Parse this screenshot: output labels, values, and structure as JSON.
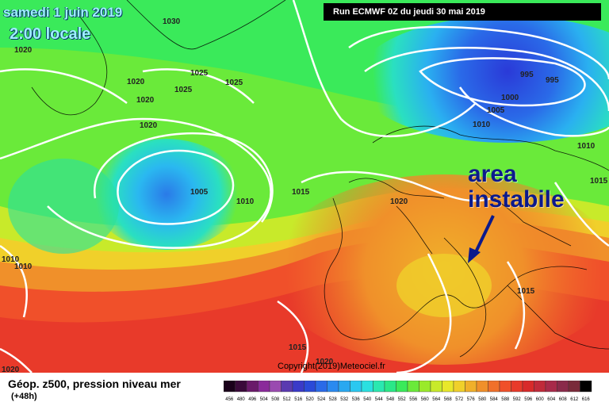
{
  "header": {
    "date": "samedi 1 juin 2019",
    "time": "2:00 locale",
    "run": "Run ECMWF 0Z du jeudi 30 mai 2019"
  },
  "annotation": {
    "line1": "area",
    "line2": "instabile"
  },
  "footer": {
    "copyright": "Copyright(2019)Meteociel.fr",
    "legend_title": "Géop. z500, pression niveau mer",
    "legend_sub": "(+48h)"
  },
  "isobar_labels": [
    "1030",
    "1020",
    "1025",
    "1025",
    "1020",
    "1025",
    "1020",
    "1020",
    "1005",
    "1010",
    "1015",
    "1020",
    "995",
    "995",
    "1000",
    "1005",
    "1010",
    "1010",
    "1015",
    "1010",
    "1010",
    "1015",
    "1015",
    "1020",
    "1020"
  ],
  "scale_ticks": [
    "456",
    "480",
    "496",
    "504",
    "508",
    "512",
    "516",
    "520",
    "524",
    "528",
    "532",
    "536",
    "540",
    "544",
    "548",
    "552",
    "556",
    "560",
    "564",
    "568",
    "572",
    "576",
    "580",
    "584",
    "588",
    "592",
    "596",
    "600",
    "604",
    "608",
    "612",
    "616"
  ],
  "scale_colors": [
    "#1a001a",
    "#3a0a3a",
    "#6a1a6a",
    "#8a2a9a",
    "#9a4ab0",
    "#5a3ab0",
    "#3a3ac8",
    "#2a4ad8",
    "#2a6ae8",
    "#2a8af0",
    "#2aa8f0",
    "#2ac8f0",
    "#2ae0e0",
    "#2ae8b0",
    "#2ae888",
    "#3aea5a",
    "#6aea3a",
    "#9aea2a",
    "#c8ea2a",
    "#e8e82a",
    "#f0d02a",
    "#f0b02a",
    "#f0902a",
    "#f0702a",
    "#f0502a",
    "#e83a2a",
    "#d82a2a",
    "#c02a3a",
    "#a82a4a",
    "#8a2a4a",
    "#7a2a3a",
    "#000000"
  ]
}
